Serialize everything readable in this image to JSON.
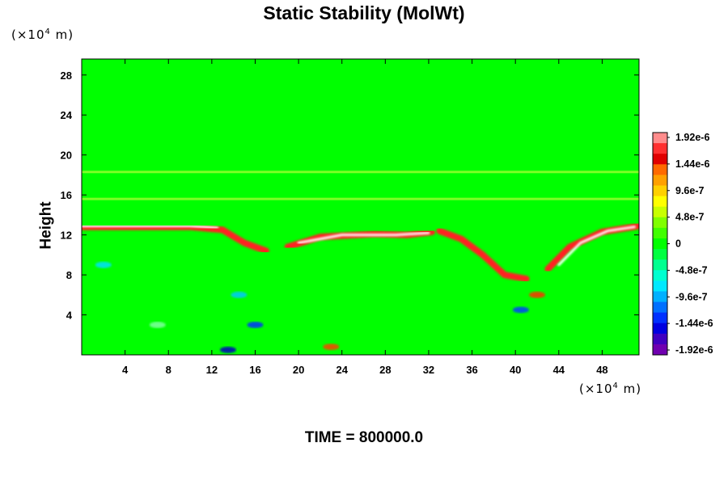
{
  "chart_data": {
    "type": "heatmap",
    "title": "Static Stability (MolWt)",
    "ylabel": "Height",
    "y_unit": "(×10⁴ m)",
    "x_unit": "(×10⁴ m)",
    "x_unit_prefix": "(×10",
    "x_unit_exp": "4",
    "x_unit_suffix": " m)",
    "y_unit_prefix": "(×10",
    "y_unit_exp": "4",
    "y_unit_suffix": " m)",
    "xlim": [
      0,
      51.4
    ],
    "ylim": [
      0,
      29.6
    ],
    "xticks": [
      4,
      8,
      12,
      16,
      20,
      24,
      28,
      32,
      36,
      40,
      44,
      48
    ],
    "yticks": [
      4,
      8,
      12,
      16,
      20,
      24,
      28
    ],
    "colorbar": {
      "labels": [
        "1.92e-6",
        "1.44e-6",
        "9.6e-7",
        "4.8e-7",
        "0",
        "-4.8e-7",
        "-9.6e-7",
        "-1.44e-6",
        "-1.92e-6"
      ],
      "colors": [
        "#ff8c8c",
        "#ff3030",
        "#e00000",
        "#ff6a00",
        "#ffa000",
        "#ffd000",
        "#ffff00",
        "#c8ff00",
        "#80ff00",
        "#40ff00",
        "#00ff00",
        "#00ff40",
        "#00ff90",
        "#00ffd0",
        "#00e8ff",
        "#00b0ff",
        "#0070ff",
        "#0030ff",
        "#0000e0",
        "#4000c0",
        "#7000b0"
      ]
    },
    "background_color": "#00ff00",
    "features": [
      {
        "kind": "band",
        "color": "#ff2020",
        "points": [
          [
            0,
            12.8
          ],
          [
            10,
            12.8
          ],
          [
            13,
            12.5
          ],
          [
            15,
            11.2
          ],
          [
            17,
            10.4
          ]
        ]
      },
      {
        "kind": "band",
        "color": "#ffffff",
        "points": [
          [
            0,
            12.9
          ],
          [
            10,
            12.9
          ],
          [
            12.5,
            12.7
          ]
        ]
      },
      {
        "kind": "band",
        "color": "#ff2020",
        "points": [
          [
            19,
            10.8
          ],
          [
            22,
            11.8
          ],
          [
            27,
            12.1
          ],
          [
            30,
            12.0
          ],
          [
            32.3,
            12.3
          ]
        ]
      },
      {
        "kind": "band",
        "color": "#ffffff",
        "points": [
          [
            20,
            11.2
          ],
          [
            24,
            12.0
          ],
          [
            29,
            12.0
          ],
          [
            32,
            12.2
          ]
        ]
      },
      {
        "kind": "band",
        "color": "#ff2020",
        "points": [
          [
            33,
            12.4
          ],
          [
            35,
            11.6
          ],
          [
            37,
            10.0
          ],
          [
            39,
            8.0
          ],
          [
            41,
            7.6
          ]
        ]
      },
      {
        "kind": "band",
        "color": "#ff2020",
        "points": [
          [
            43,
            8.6
          ],
          [
            45,
            10.8
          ],
          [
            48,
            12.3
          ],
          [
            51.4,
            12.9
          ]
        ]
      },
      {
        "kind": "band",
        "color": "#ffffff",
        "points": [
          [
            44,
            9.0
          ],
          [
            46,
            11.2
          ],
          [
            48.5,
            12.4
          ],
          [
            51,
            12.8
          ]
        ]
      }
    ]
  },
  "footer": {
    "time_label": "TIME = 800000.0"
  }
}
